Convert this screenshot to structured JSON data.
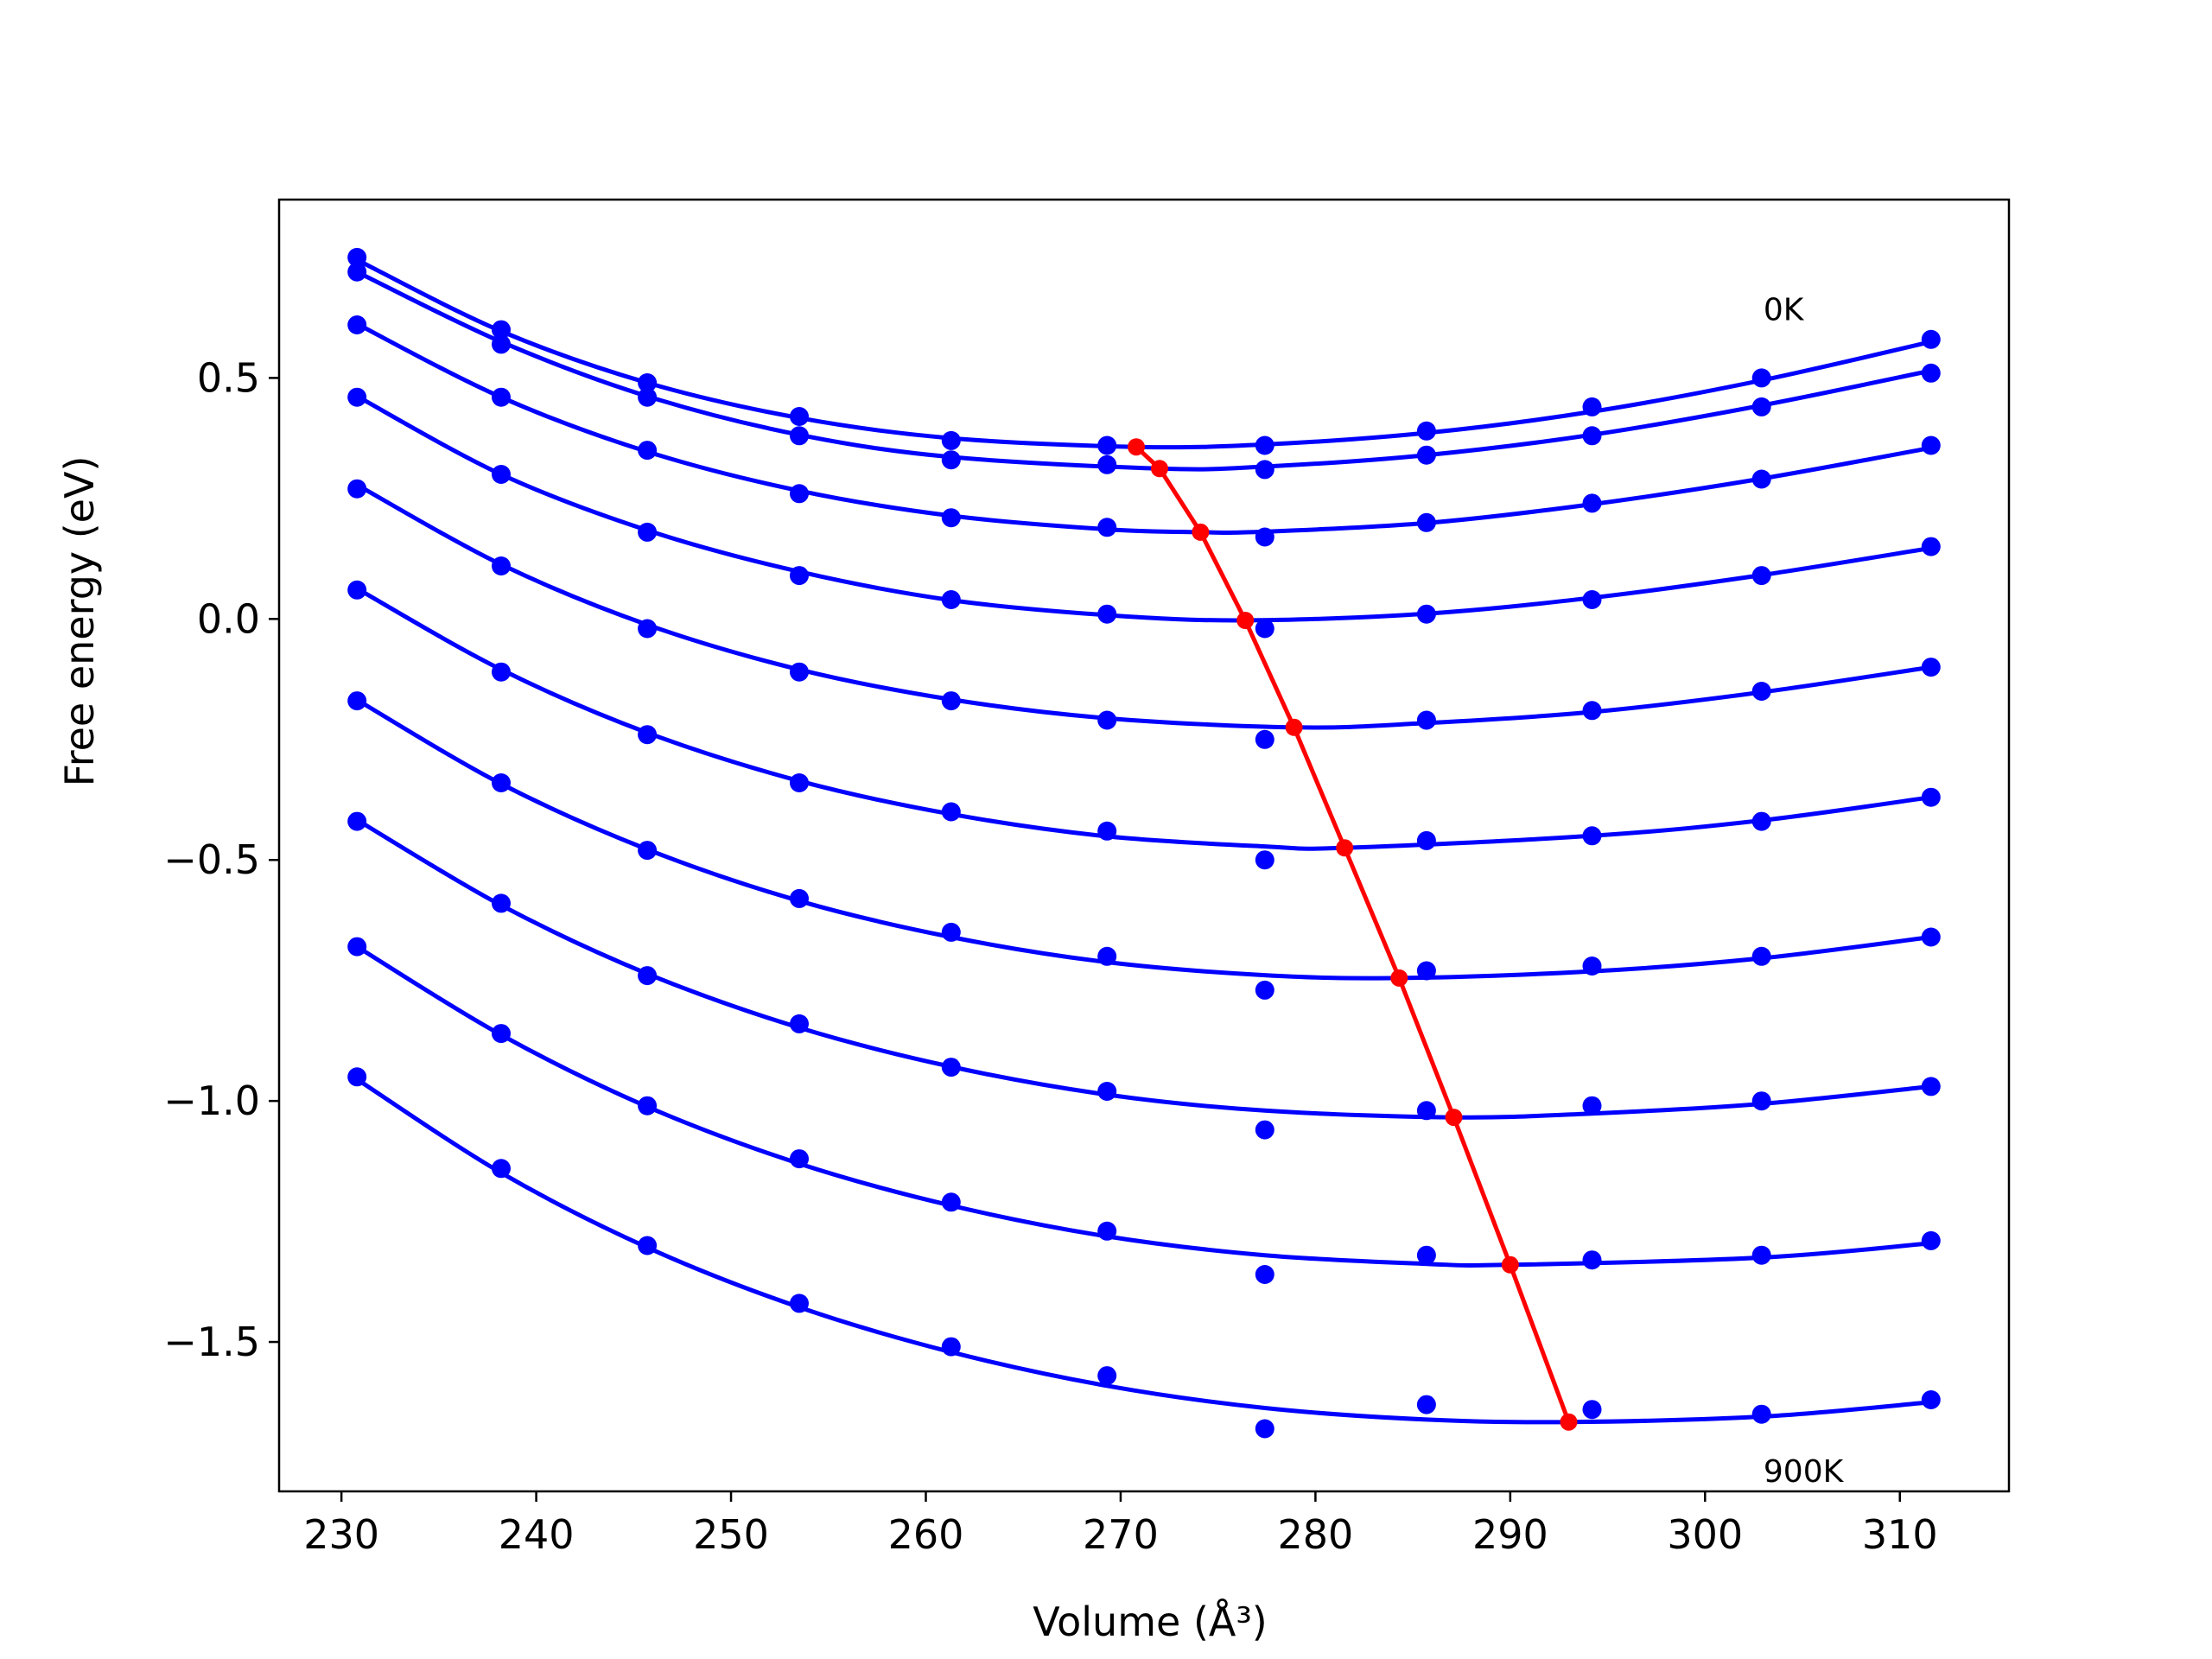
{
  "chart_data": {
    "type": "line",
    "xlabel": "Volume",
    "xlabel_unit": "(Å³)",
    "ylabel": "Free energy (eV)",
    "xlim": [
      226.8,
      315.6
    ],
    "ylim": [
      -1.81,
      0.87
    ],
    "x_ticks": [
      230,
      240,
      250,
      260,
      270,
      280,
      290,
      300,
      310
    ],
    "x_tick_labels": [
      "230",
      "240",
      "250",
      "260",
      "270",
      "280",
      "290",
      "300",
      "310"
    ],
    "y_ticks": [
      0.5,
      0.0,
      -0.5,
      -1.0,
      -1.5
    ],
    "y_tick_labels": [
      "0.5",
      "0.0",
      "−0.5",
      "−1.0",
      "−1.5"
    ],
    "grid": false,
    "colors": {
      "curves": "#0000ff",
      "points": "#0000ff",
      "minimum_line": "#ff0000"
    },
    "annotations": [
      {
        "text": "0K",
        "x": 303.0,
        "y": 0.62
      },
      {
        "text": "900K",
        "x": 303.0,
        "y": -1.79
      }
    ],
    "volumes": [
      230.8,
      238.2,
      245.7,
      253.5,
      261.3,
      269.3,
      277.4,
      285.7,
      294.2,
      302.9,
      311.6
    ],
    "series": [
      {
        "points": [
          0.75,
          0.6,
          0.49,
          0.42,
          0.37,
          0.36,
          0.36,
          0.39,
          0.44,
          0.5,
          0.58
        ],
        "fit": [
          [
            230.8,
            0.745
          ],
          [
            238.2,
            0.597
          ],
          [
            245.7,
            0.49
          ],
          [
            253.5,
            0.417
          ],
          [
            261.3,
            0.375
          ],
          [
            270.8,
            0.357
          ],
          [
            277.4,
            0.362
          ],
          [
            285.7,
            0.386
          ],
          [
            294.2,
            0.43
          ],
          [
            302.9,
            0.495
          ],
          [
            311.6,
            0.575
          ]
        ]
      },
      {
        "points": [
          0.72,
          0.57,
          0.46,
          0.38,
          0.33,
          0.32,
          0.31,
          0.34,
          0.38,
          0.44,
          0.51
        ],
        "fit": [
          [
            230.8,
            0.72
          ],
          [
            238.2,
            0.575
          ],
          [
            245.7,
            0.462
          ],
          [
            253.5,
            0.382
          ],
          [
            261.3,
            0.336
          ],
          [
            272.0,
            0.312
          ],
          [
            277.4,
            0.316
          ],
          [
            285.7,
            0.34
          ],
          [
            294.2,
            0.382
          ],
          [
            302.9,
            0.443
          ],
          [
            311.6,
            0.515
          ]
        ]
      },
      {
        "points": [
          0.61,
          0.46,
          0.35,
          0.26,
          0.21,
          0.19,
          0.17,
          0.2,
          0.24,
          0.29,
          0.36
        ],
        "fit": [
          [
            230.8,
            0.612
          ],
          [
            238.2,
            0.46
          ],
          [
            245.7,
            0.347
          ],
          [
            253.5,
            0.266
          ],
          [
            261.3,
            0.214
          ],
          [
            269.3,
            0.186
          ],
          [
            274.1,
            0.18
          ],
          [
            277.4,
            0.181
          ],
          [
            285.7,
            0.199
          ],
          [
            294.2,
            0.238
          ],
          [
            302.9,
            0.291
          ],
          [
            311.6,
            0.355
          ]
        ]
      },
      {
        "points": [
          0.46,
          0.3,
          0.18,
          0.09,
          0.04,
          0.01,
          -0.02,
          0.01,
          0.04,
          0.09,
          0.15
        ],
        "fit": [
          [
            230.8,
            0.462
          ],
          [
            238.2,
            0.3
          ],
          [
            245.7,
            0.184
          ],
          [
            253.5,
            0.098
          ],
          [
            261.3,
            0.039
          ],
          [
            269.3,
            0.008
          ],
          [
            276.4,
            -0.003
          ],
          [
            285.7,
            0.011
          ],
          [
            294.2,
            0.044
          ],
          [
            302.9,
            0.091
          ],
          [
            311.6,
            0.147
          ]
        ]
      },
      {
        "points": [
          0.27,
          0.11,
          -0.02,
          -0.11,
          -0.17,
          -0.21,
          -0.25,
          -0.21,
          -0.19,
          -0.15,
          -0.1
        ],
        "fit": [
          [
            230.8,
            0.278
          ],
          [
            238.2,
            0.113
          ],
          [
            245.7,
            -0.012
          ],
          [
            253.5,
            -0.105
          ],
          [
            261.3,
            -0.167
          ],
          [
            269.3,
            -0.206
          ],
          [
            278.9,
            -0.225
          ],
          [
            285.7,
            -0.216
          ],
          [
            294.2,
            -0.193
          ],
          [
            302.9,
            -0.152
          ],
          [
            311.6,
            -0.1
          ]
        ]
      },
      {
        "points": [
          0.06,
          -0.11,
          -0.24,
          -0.34,
          -0.4,
          -0.44,
          -0.5,
          -0.46,
          -0.45,
          -0.42,
          -0.37
        ],
        "fit": [
          [
            230.8,
            0.063
          ],
          [
            238.2,
            -0.105
          ],
          [
            245.7,
            -0.236
          ],
          [
            253.5,
            -0.336
          ],
          [
            261.3,
            -0.405
          ],
          [
            269.3,
            -0.451
          ],
          [
            277.4,
            -0.472
          ],
          [
            281.5,
            -0.475
          ],
          [
            294.2,
            -0.45
          ],
          [
            302.9,
            -0.418
          ],
          [
            311.6,
            -0.37
          ]
        ]
      },
      {
        "points": [
          -0.17,
          -0.34,
          -0.48,
          -0.58,
          -0.65,
          -0.7,
          -0.77,
          -0.73,
          -0.72,
          -0.7,
          -0.66
        ],
        "fit": [
          [
            230.8,
            -0.168
          ],
          [
            238.2,
            -0.342
          ],
          [
            245.7,
            -0.478
          ],
          [
            253.5,
            -0.585
          ],
          [
            261.3,
            -0.66
          ],
          [
            269.3,
            -0.712
          ],
          [
            277.4,
            -0.739
          ],
          [
            284.3,
            -0.745
          ],
          [
            294.2,
            -0.731
          ],
          [
            302.9,
            -0.704
          ],
          [
            311.6,
            -0.66
          ]
        ]
      },
      {
        "points": [
          -0.42,
          -0.59,
          -0.74,
          -0.84,
          -0.93,
          -0.98,
          -1.06,
          -1.02,
          -1.01,
          -1.0,
          -0.97
        ],
        "fit": [
          [
            230.8,
            -0.417
          ],
          [
            238.2,
            -0.594
          ],
          [
            245.7,
            -0.736
          ],
          [
            253.5,
            -0.848
          ],
          [
            261.3,
            -0.929
          ],
          [
            269.3,
            -0.987
          ],
          [
            277.4,
            -1.02
          ],
          [
            287.1,
            -1.034
          ],
          [
            294.2,
            -1.026
          ],
          [
            302.9,
            -1.006
          ],
          [
            311.6,
            -0.97
          ]
        ]
      },
      {
        "points": [
          -0.68,
          -0.86,
          -1.01,
          -1.12,
          -1.21,
          -1.27,
          -1.36,
          -1.32,
          -1.33,
          -1.32,
          -1.29
        ],
        "fit": [
          [
            230.8,
            -0.68
          ],
          [
            238.2,
            -0.863
          ],
          [
            245.7,
            -1.012
          ],
          [
            253.5,
            -1.13
          ],
          [
            261.3,
            -1.217
          ],
          [
            269.3,
            -1.281
          ],
          [
            277.4,
            -1.32
          ],
          [
            285.7,
            -1.338
          ],
          [
            290.0,
            -1.34
          ],
          [
            302.9,
            -1.325
          ],
          [
            311.6,
            -1.295
          ]
        ]
      },
      {
        "points": [
          -0.95,
          -1.14,
          -1.3,
          -1.42,
          -1.51,
          -1.57,
          -1.68,
          -1.63,
          -1.64,
          -1.65,
          -1.62
        ],
        "fit": [
          [
            230.8,
            -0.955
          ],
          [
            238.2,
            -1.149
          ],
          [
            245.7,
            -1.304
          ],
          [
            253.5,
            -1.428
          ],
          [
            261.3,
            -1.521
          ],
          [
            269.3,
            -1.591
          ],
          [
            277.4,
            -1.637
          ],
          [
            285.7,
            -1.661
          ],
          [
            293.0,
            -1.666
          ],
          [
            302.9,
            -1.655
          ],
          [
            311.6,
            -1.625
          ]
        ]
      }
    ],
    "minimum_line": {
      "x": [
        270.8,
        272.0,
        274.1,
        276.4,
        278.9,
        281.5,
        284.3,
        287.1,
        290.0,
        293.0
      ],
      "y": [
        0.357,
        0.312,
        0.18,
        -0.003,
        -0.225,
        -0.475,
        -0.745,
        -1.034,
        -1.34,
        -1.666
      ]
    }
  }
}
